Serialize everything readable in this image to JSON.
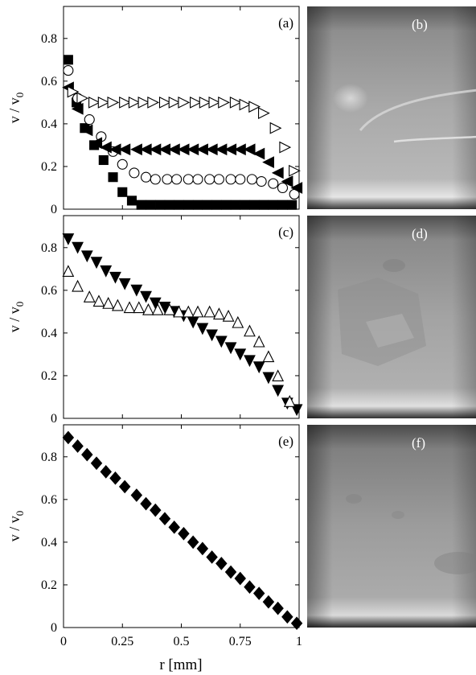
{
  "figure": {
    "xlabel": "r [mm]",
    "xtick_labels": [
      "0",
      "0.25",
      "0.5",
      "0.75",
      "1"
    ],
    "ytick_labels": [
      "0",
      "0.2",
      "0.4",
      "0.6",
      "0.8"
    ]
  },
  "chart_data": [
    {
      "panel": "(a)",
      "type": "scatter",
      "xlabel": "",
      "ylabel": "v / v0",
      "xlim": [
        0,
        1
      ],
      "ylim": [
        0,
        0.95
      ],
      "series": [
        {
          "marker": "square-filled",
          "x": [
            0.02,
            0.055,
            0.09,
            0.13,
            0.17,
            0.21,
            0.25,
            0.29,
            0.33,
            0.37,
            0.41,
            0.45,
            0.49,
            0.53,
            0.57,
            0.61,
            0.65,
            0.69,
            0.73,
            0.77,
            0.81,
            0.85,
            0.89,
            0.93,
            0.97
          ],
          "y": [
            0.7,
            0.5,
            0.38,
            0.3,
            0.23,
            0.15,
            0.08,
            0.04,
            0.02,
            0.02,
            0.02,
            0.02,
            0.02,
            0.02,
            0.02,
            0.02,
            0.02,
            0.02,
            0.02,
            0.02,
            0.02,
            0.02,
            0.02,
            0.02,
            0.02
          ]
        },
        {
          "marker": "circle-open",
          "x": [
            0.02,
            0.06,
            0.11,
            0.16,
            0.21,
            0.25,
            0.3,
            0.35,
            0.39,
            0.44,
            0.48,
            0.53,
            0.57,
            0.62,
            0.66,
            0.71,
            0.75,
            0.8,
            0.84,
            0.89,
            0.93,
            0.98
          ],
          "y": [
            0.65,
            0.52,
            0.42,
            0.34,
            0.27,
            0.21,
            0.17,
            0.15,
            0.14,
            0.14,
            0.14,
            0.14,
            0.14,
            0.14,
            0.14,
            0.14,
            0.14,
            0.14,
            0.13,
            0.12,
            0.1,
            0.07
          ]
        },
        {
          "marker": "triangle-left-filled",
          "x": [
            0.02,
            0.06,
            0.1,
            0.14,
            0.18,
            0.22,
            0.26,
            0.31,
            0.35,
            0.39,
            0.43,
            0.47,
            0.51,
            0.55,
            0.59,
            0.63,
            0.67,
            0.71,
            0.75,
            0.79,
            0.83,
            0.87,
            0.91,
            0.95,
            0.99
          ],
          "y": [
            0.57,
            0.47,
            0.37,
            0.31,
            0.29,
            0.28,
            0.28,
            0.28,
            0.28,
            0.28,
            0.28,
            0.28,
            0.28,
            0.28,
            0.28,
            0.28,
            0.28,
            0.28,
            0.28,
            0.28,
            0.26,
            0.22,
            0.17,
            0.13,
            0.1
          ]
        },
        {
          "marker": "triangle-right-open",
          "x": [
            0.04,
            0.08,
            0.13,
            0.17,
            0.21,
            0.26,
            0.3,
            0.34,
            0.38,
            0.43,
            0.47,
            0.51,
            0.56,
            0.6,
            0.64,
            0.68,
            0.73,
            0.77,
            0.81,
            0.85,
            0.9,
            0.94,
            0.98
          ],
          "y": [
            0.55,
            0.52,
            0.5,
            0.5,
            0.5,
            0.5,
            0.5,
            0.5,
            0.5,
            0.5,
            0.5,
            0.5,
            0.5,
            0.5,
            0.5,
            0.5,
            0.5,
            0.49,
            0.48,
            0.45,
            0.38,
            0.29,
            0.18
          ]
        }
      ]
    },
    {
      "panel": "(c)",
      "type": "scatter",
      "xlabel": "",
      "ylabel": "v / v0",
      "xlim": [
        0,
        1
      ],
      "ylim": [
        0,
        0.95
      ],
      "series": [
        {
          "marker": "triangle-down-filled",
          "x": [
            0.02,
            0.06,
            0.1,
            0.14,
            0.18,
            0.22,
            0.26,
            0.31,
            0.35,
            0.39,
            0.43,
            0.47,
            0.51,
            0.55,
            0.59,
            0.63,
            0.67,
            0.71,
            0.75,
            0.79,
            0.83,
            0.87,
            0.91,
            0.95,
            0.99
          ],
          "y": [
            0.84,
            0.8,
            0.76,
            0.73,
            0.69,
            0.66,
            0.63,
            0.6,
            0.57,
            0.54,
            0.52,
            0.5,
            0.48,
            0.45,
            0.42,
            0.39,
            0.36,
            0.33,
            0.3,
            0.27,
            0.24,
            0.19,
            0.13,
            0.07,
            0.04
          ]
        },
        {
          "marker": "triangle-up-open",
          "x": [
            0.02,
            0.06,
            0.11,
            0.15,
            0.19,
            0.23,
            0.28,
            0.32,
            0.36,
            0.4,
            0.45,
            0.49,
            0.53,
            0.57,
            0.62,
            0.66,
            0.7,
            0.74,
            0.79,
            0.83,
            0.87,
            0.91,
            0.96
          ],
          "y": [
            0.69,
            0.62,
            0.57,
            0.55,
            0.54,
            0.53,
            0.52,
            0.52,
            0.51,
            0.51,
            0.51,
            0.5,
            0.5,
            0.5,
            0.5,
            0.49,
            0.48,
            0.45,
            0.41,
            0.36,
            0.29,
            0.2,
            0.08
          ]
        }
      ]
    },
    {
      "panel": "(e)",
      "type": "scatter",
      "xlabel": "r [mm]",
      "ylabel": "v / v0",
      "xlim": [
        0,
        1
      ],
      "ylim": [
        0,
        0.95
      ],
      "series": [
        {
          "marker": "diamond-filled",
          "x": [
            0.02,
            0.06,
            0.1,
            0.14,
            0.18,
            0.22,
            0.26,
            0.31,
            0.35,
            0.39,
            0.43,
            0.47,
            0.51,
            0.55,
            0.59,
            0.63,
            0.67,
            0.71,
            0.75,
            0.79,
            0.83,
            0.87,
            0.91,
            0.95,
            0.99
          ],
          "y": [
            0.89,
            0.85,
            0.81,
            0.77,
            0.73,
            0.7,
            0.66,
            0.62,
            0.58,
            0.55,
            0.51,
            0.47,
            0.44,
            0.4,
            0.37,
            0.33,
            0.3,
            0.26,
            0.23,
            0.19,
            0.16,
            0.12,
            0.09,
            0.05,
            0.02
          ]
        }
      ]
    }
  ],
  "photos": [
    {
      "label": "(b)",
      "base": "#a8a8a8",
      "features": "streaks"
    },
    {
      "label": "(d)",
      "base": "#a0a0a0",
      "features": "patches"
    },
    {
      "label": "(f)",
      "base": "#9a9a9a",
      "features": "faint"
    }
  ]
}
